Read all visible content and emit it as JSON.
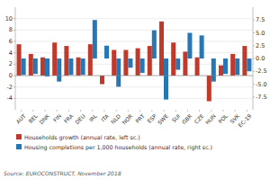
{
  "chart_data": {
    "type": "bar",
    "categories": [
      "AUT",
      "BEL",
      "DNK",
      "FIN",
      "FRA",
      "DEU",
      "IRL",
      "ITA",
      "NLD",
      "NOR",
      "PRT",
      "ESP",
      "SWE",
      "SUI",
      "GBR",
      "CZE",
      "HUN",
      "POL",
      "SVK",
      "EC-19"
    ],
    "series": [
      {
        "name": "Households growth (annual rate, left sc.)",
        "color": "#c0392b",
        "values": [
          5.5,
          3.8,
          3.2,
          5.8,
          5.2,
          3.2,
          5.5,
          -1.5,
          4.5,
          4.5,
          4.8,
          5.2,
          9.5,
          5.8,
          4.2,
          3.2,
          -4.5,
          1.8,
          3.8,
          5.2
        ]
      },
      {
        "name": "Housing completions per 1,000 households (annual rate, right sc.)",
        "color": "#2777b4",
        "axis": "y2",
        "values": [
          -3.2,
          -3.0,
          -3.5,
          -4.5,
          -3.2,
          -3.2,
          7.5,
          2.5,
          -5.5,
          -1.8,
          -2.8,
          5.5,
          -8.0,
          -2.2,
          5.0,
          4.5,
          -4.5,
          -3.0,
          -3.2,
          -2.5
        ]
      }
    ],
    "ylim": [
      -6,
      12
    ],
    "yticks": [
      -4,
      -2,
      0,
      2,
      4,
      6,
      8,
      10
    ],
    "y2lim": [
      -10,
      10
    ],
    "y2ticks": [
      -7.5,
      {
        "value": -5,
        "label": "-5.0"
      },
      -2.5,
      {
        "value": 0,
        "label": "0.0"
      },
      2.5,
      {
        "value": 5,
        "label": "5.0"
      },
      7.5
    ],
    "grid": true,
    "legend": "bottom",
    "annotations": [
      "Source: EUROCONSTRUCT, November 2018"
    ]
  }
}
